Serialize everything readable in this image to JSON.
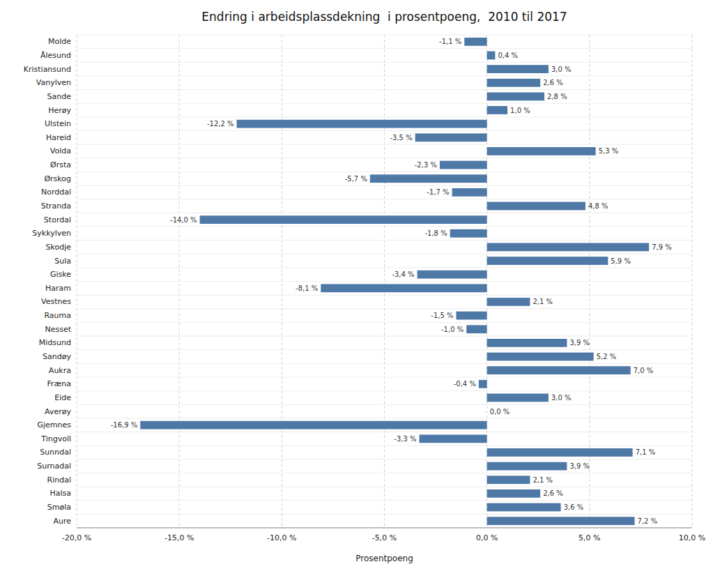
{
  "chart_data": {
    "type": "bar",
    "orientation": "horizontal",
    "title": "Endring i arbeidsplassdekning  i prosentpoeng,  2010 til 2017",
    "xlabel": "Prosentpoeng",
    "categories": [
      "Molde",
      "Ålesund",
      "Kristiansund",
      "Vanylven",
      "Sande",
      "Herøy",
      "Ulstein",
      "Hareid",
      "Volda",
      "Ørsta",
      "Ørskog",
      "Norddal",
      "Stranda",
      "Stordal",
      "Sykkylven",
      "Skodje",
      "Sula",
      "Giske",
      "Haram",
      "Vestnes",
      "Rauma",
      "Nesset",
      "Midsund",
      "Sandøy",
      "Aukra",
      "Fræna",
      "Eide",
      "Averøy",
      "Gjemnes",
      "Tingvoll",
      "Sunndal",
      "Surnadal",
      "Rindal",
      "Halsa",
      "Smøla",
      "Aure"
    ],
    "values": [
      -1.1,
      0.4,
      3.0,
      2.6,
      2.8,
      1.0,
      -12.2,
      -3.5,
      5.3,
      -2.3,
      -5.7,
      -1.7,
      4.8,
      -14.0,
      -1.8,
      7.9,
      5.9,
      -3.4,
      -8.1,
      2.1,
      -1.5,
      -1.0,
      3.9,
      5.2,
      7.0,
      -0.4,
      3.0,
      0.0,
      -16.9,
      -3.3,
      7.1,
      3.9,
      2.1,
      2.6,
      3.6,
      7.2
    ],
    "value_labels": [
      "-1,1 %",
      "0,4 %",
      "3,0 %",
      "2,6 %",
      "2,8 %",
      "1,0 %",
      "-12,2 %",
      "-3,5 %",
      "5,3 %",
      "-2,3 %",
      "-5,7 %",
      "-1,7 %",
      "4,8 %",
      "-14,0 %",
      "-1,8 %",
      "7,9 %",
      "5,9 %",
      "-3,4 %",
      "-8,1 %",
      "2,1 %",
      "-1,5 %",
      "-1,0 %",
      "3,9 %",
      "5,2 %",
      "7,0 %",
      "-0,4 %",
      "3,0 %",
      "0,0 %",
      "-16,9 %",
      "-3,3 %",
      "7,1 %",
      "3,9 %",
      "2,1 %",
      "2,6 %",
      "3,6 %",
      "7,2 %"
    ],
    "data_labels": true,
    "color": "#4e79a7",
    "xlim": [
      -20.0,
      10.0
    ],
    "xticks": [
      {
        "value": -20.0,
        "label": "-20,0 %"
      },
      {
        "value": -15.0,
        "label": "-15,0 %"
      },
      {
        "value": -10.0,
        "label": "-10,0 %"
      },
      {
        "value": -5.0,
        "label": "-5,0 %"
      },
      {
        "value": 0.0,
        "label": "0,0 %"
      },
      {
        "value": 5.0,
        "label": "5,0 %"
      },
      {
        "value": 10.0,
        "label": "10,0 %"
      }
    ],
    "grid": true
  }
}
